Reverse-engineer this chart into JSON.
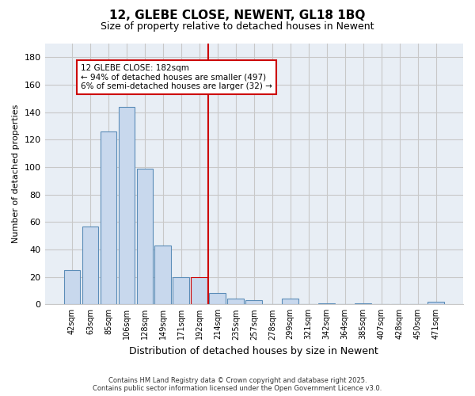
{
  "title": "12, GLEBE CLOSE, NEWENT, GL18 1BQ",
  "subtitle": "Size of property relative to detached houses in Newent",
  "xlabel": "Distribution of detached houses by size in Newent",
  "ylabel": "Number of detached properties",
  "bar_labels": [
    "42sqm",
    "63sqm",
    "85sqm",
    "106sqm",
    "128sqm",
    "149sqm",
    "171sqm",
    "192sqm",
    "214sqm",
    "235sqm",
    "257sqm",
    "278sqm",
    "299sqm",
    "321sqm",
    "342sqm",
    "364sqm",
    "385sqm",
    "407sqm",
    "428sqm",
    "450sqm",
    "471sqm"
  ],
  "bar_values": [
    25,
    57,
    126,
    144,
    99,
    43,
    20,
    20,
    8,
    4,
    3,
    0,
    4,
    0,
    1,
    0,
    1,
    0,
    0,
    0,
    2
  ],
  "bar_color": "#c8d8ed",
  "bar_edge_color": "#5b8db8",
  "highlight_bar_index": 7,
  "highlight_bar_edge_color": "#cc0000",
  "vline_x": 7.5,
  "vline_color": "#cc0000",
  "ylim": [
    0,
    190
  ],
  "yticks": [
    0,
    20,
    40,
    60,
    80,
    100,
    120,
    140,
    160,
    180
  ],
  "annotation_title": "12 GLEBE CLOSE: 182sqm",
  "annotation_line1": "← 94% of detached houses are smaller (497)",
  "annotation_line2": "6% of semi-detached houses are larger (32) →",
  "annotation_box_color": "#ffffff",
  "annotation_box_edge": "#cc0000",
  "footer_line1": "Contains HM Land Registry data © Crown copyright and database right 2025.",
  "footer_line2": "Contains public sector information licensed under the Open Government Licence v3.0.",
  "bg_color": "#ffffff",
  "plot_bg_color": "#e8eef5",
  "grid_color": "#c8c8c8"
}
